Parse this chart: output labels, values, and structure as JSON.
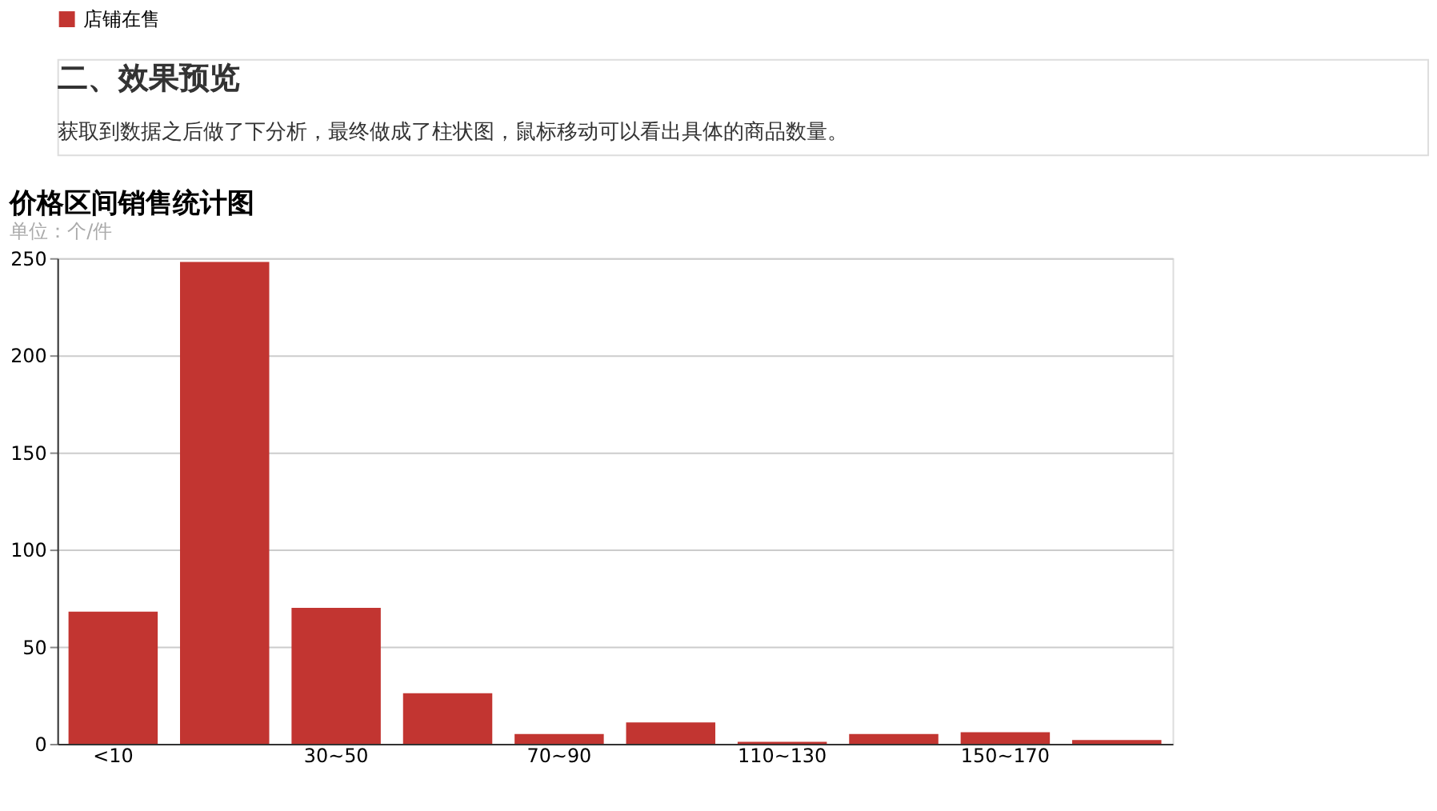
{
  "chart_data": {
    "type": "bar",
    "title": "价格区间销售统计图",
    "subtitle": "单位：个/件",
    "annotations": [
      "二、效果预览",
      "获取到数据之后做了下分析，最终做成了柱状图，鼠标移动可以看出具体的商品数量。"
    ],
    "categories": [
      "<10",
      null,
      "30~50",
      null,
      "70~90",
      null,
      "110~130",
      null,
      "150~170",
      null
    ],
    "series": [
      {
        "name": "店铺在售",
        "color": "#c23531",
        "values": [
          68,
          248,
          70,
          26,
          5,
          11,
          1,
          5,
          6,
          2
        ]
      }
    ],
    "ylim": [
      0,
      250
    ],
    "yticks": [
      0,
      50,
      100,
      150,
      200,
      250
    ],
    "grid": "y",
    "legend": "top"
  }
}
